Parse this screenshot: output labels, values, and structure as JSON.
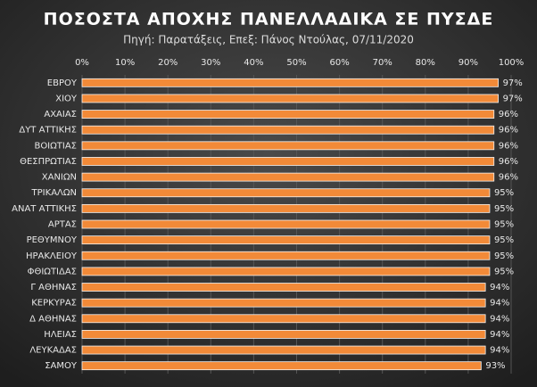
{
  "chart_data": {
    "type": "hbar",
    "title": "ΠΟΣΟΣΤΑ ΑΠΟΧΗΣ ΠΑΝΕΛΛΑΔΙΚΑ ΣΕ ΠΥΣΔΕ",
    "subtitle": "Πηγή: Παρατάξεις, Επεξ: Πάνος Ντούλας, 07/11/2020",
    "categories": [
      "ΕΒΡΟΥ",
      "ΧΙΟΥ",
      "ΑΧΑΙΑΣ",
      "ΔΥΤ ΑΤΤΙΚΗΣ",
      "ΒΟΙΩΤΙΑΣ",
      "ΘΕΣΠΡΩΤΙΑΣ",
      "ΧΑΝΙΩΝ",
      "ΤΡΙΚΑΛΩΝ",
      "ΑΝΑΤ ΑΤΤΙΚΗΣ",
      "ΑΡΤΑΣ",
      "ΡΕΘΥΜΝΟΥ",
      "ΗΡΑΚΛΕΙΟΥ",
      "ΦΘΙΩΤΙΔΑΣ",
      "Γ ΑΘΗΝΑΣ",
      "ΚΕΡΚΥΡΑΣ",
      "Δ ΑΘΗΝΑΣ",
      "ΗΛΕΙΑΣ",
      "ΛΕΥΚΑΔΑΣ",
      "ΣΑΜΟΥ"
    ],
    "values": [
      97,
      97,
      96,
      96,
      96,
      96,
      96,
      95,
      95,
      95,
      95,
      95,
      95,
      94,
      94,
      94,
      94,
      94,
      93
    ],
    "value_labels": [
      "97%",
      "97%",
      "96%",
      "96%",
      "96%",
      "96%",
      "96%",
      "95%",
      "95%",
      "95%",
      "95%",
      "95%",
      "95%",
      "94%",
      "94%",
      "94%",
      "94%",
      "94%",
      "93%"
    ],
    "color": "#f28a38",
    "xlim": [
      0,
      100
    ],
    "xticks": [
      {
        "value": 0,
        "label": "0%"
      },
      {
        "value": 10,
        "label": "10%"
      },
      {
        "value": 20,
        "label": "20%"
      },
      {
        "value": 30,
        "label": "30%"
      },
      {
        "value": 40,
        "label": "40%"
      },
      {
        "value": 50,
        "label": "50%"
      },
      {
        "value": 60,
        "label": "60%"
      },
      {
        "value": 70,
        "label": "70%"
      },
      {
        "value": 80,
        "label": "80%"
      },
      {
        "value": 90,
        "label": "90%"
      },
      {
        "value": 100,
        "label": "100%"
      }
    ],
    "grid": true
  }
}
